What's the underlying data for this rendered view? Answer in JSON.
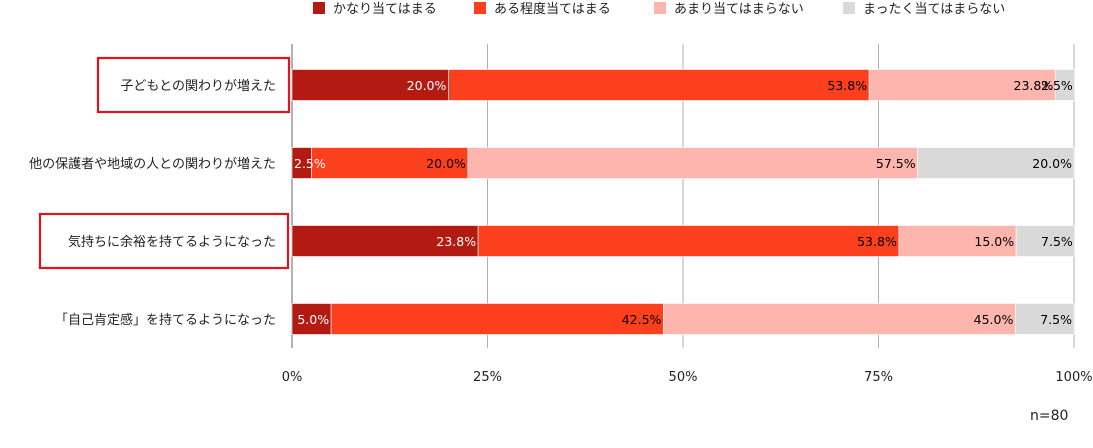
{
  "chart_data": {
    "type": "bar",
    "orientation": "horizontal",
    "stacked": true,
    "categories": [
      "子どもとの関わりが増えた",
      "他の保護者や地域の人との関わりが増えた",
      "気持ちに余裕を持てるようになった",
      "「自己肯定感」を持てるようになった"
    ],
    "highlighted_categories": [
      "子どもとの関わりが増えた",
      "気持ちに余裕を持てるようになった"
    ],
    "series": [
      {
        "name": "かなり当てはまる",
        "color": "#b31b12",
        "values": [
          20.0,
          2.5,
          23.8,
          5.0
        ],
        "labels": [
          "20.0%",
          "2.5%",
          "23.8%",
          "5.0%"
        ],
        "label_color": "#ffffff"
      },
      {
        "name": "ある程度当てはまる",
        "color": "#fc3f1d",
        "values": [
          53.8,
          20.0,
          53.8,
          42.5
        ],
        "labels": [
          "53.8%",
          "20.0%",
          "53.8%",
          "42.5%"
        ],
        "label_color": "#000000"
      },
      {
        "name": "あまり当てはまらない",
        "color": "#fdb5ad",
        "values": [
          23.8,
          57.5,
          15.0,
          45.0
        ],
        "labels": [
          "23.8%",
          "57.5%",
          "15.0%",
          "45.0%"
        ],
        "label_color": "#000000"
      },
      {
        "name": "まったく当てはまらない",
        "color": "#d9d9d9",
        "values": [
          2.5,
          20.0,
          7.5,
          7.5
        ],
        "labels": [
          "2.5%",
          "20.0%",
          "7.5%",
          "7.5%"
        ],
        "label_color": "#000000"
      }
    ],
    "x_ticks": [
      "0%",
      "25%",
      "50%",
      "75%",
      "100%"
    ],
    "xlim": [
      0,
      100
    ],
    "grid": true,
    "legend_position": "top"
  },
  "footnote": "n=80"
}
